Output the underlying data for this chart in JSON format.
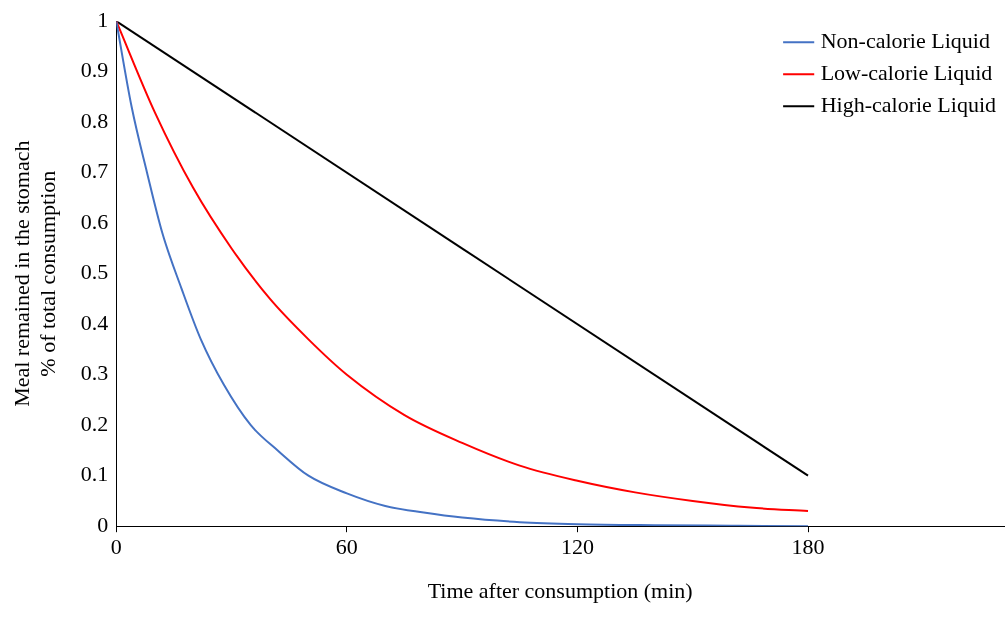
{
  "chart_data": {
    "type": "line",
    "xlabel": "Time after consumption (min)",
    "ylabel": "Meal remained in the stomach\n% of total consumption",
    "xlim": [
      0,
      231
    ],
    "xticks": [
      0,
      60,
      120,
      180
    ],
    "ylim": [
      0,
      1
    ],
    "yticks": [
      0,
      0.1,
      0.2,
      0.3,
      0.4,
      0.5,
      0.6,
      0.7,
      0.8,
      0.9,
      1
    ],
    "grid": false,
    "legend": "top right",
    "marker": "none",
    "line_style": "solid",
    "series": [
      {
        "name": "Non-calorie Liquid",
        "color": "#4472c4",
        "x": [
          0,
          4,
          8,
          12,
          17,
          22,
          28,
          35,
          42,
          50,
          60,
          70,
          80,
          90,
          105,
          120,
          140,
          160,
          180
        ],
        "values": [
          1,
          0.83,
          0.7,
          0.58,
          0.47,
          0.37,
          0.28,
          0.2,
          0.15,
          0.1,
          0.065,
          0.04,
          0.027,
          0.017,
          0.008,
          0.004,
          0.002,
          0.001,
          0
        ]
      },
      {
        "name": "Low-calorie Liquid",
        "color": "#ff0000",
        "x": [
          0,
          10,
          20,
          30,
          40,
          50,
          60,
          75,
          90,
          105,
          120,
          135,
          150,
          165,
          180
        ],
        "values": [
          1,
          0.82,
          0.67,
          0.55,
          0.45,
          0.37,
          0.3,
          0.22,
          0.165,
          0.12,
          0.09,
          0.067,
          0.05,
          0.037,
          0.03
        ]
      },
      {
        "name": "High-calorie Liquid",
        "color": "#000000",
        "x": [
          0,
          180
        ],
        "values": [
          1,
          0.1
        ]
      }
    ]
  }
}
